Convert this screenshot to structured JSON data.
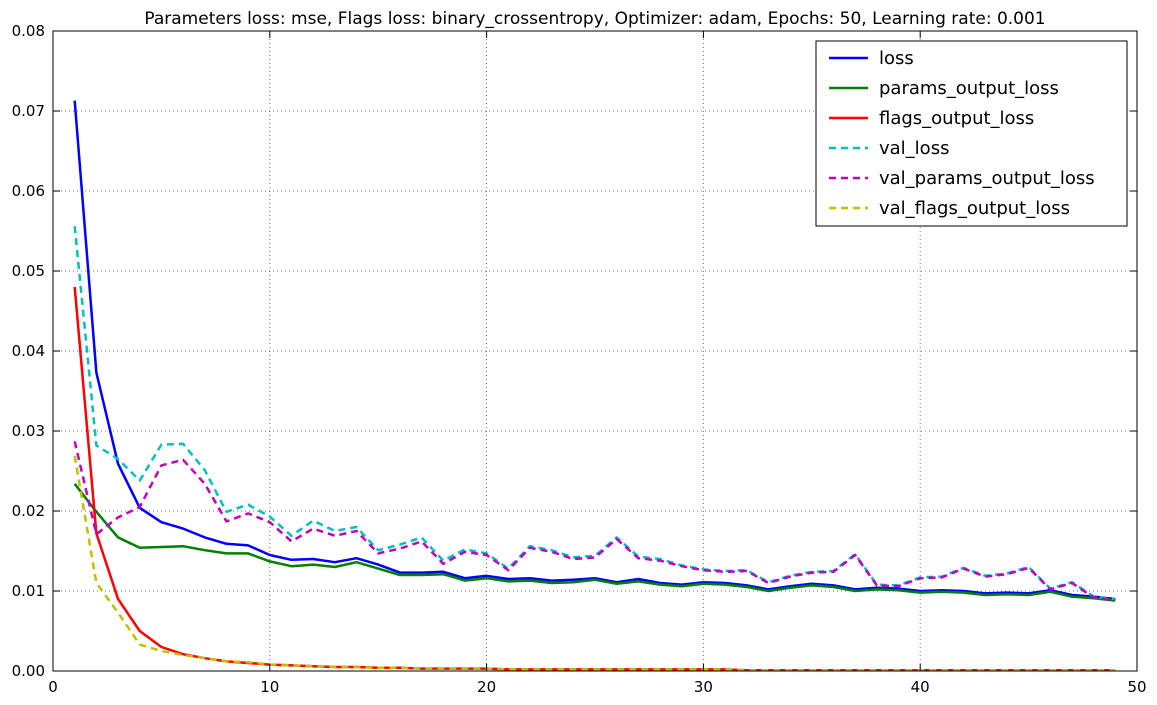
{
  "chart_data": {
    "type": "line",
    "title": "Parameters loss: mse, Flags loss: binary_crossentropy, Optimizer: adam, Epochs: 50, Learning rate: 0.001",
    "xlabel": "",
    "ylabel": "",
    "xlim": [
      0,
      50
    ],
    "ylim": [
      0,
      0.08
    ],
    "xticks": [
      0,
      10,
      20,
      30,
      40,
      50
    ],
    "yticks": [
      0.0,
      0.01,
      0.02,
      0.03,
      0.04,
      0.05,
      0.06,
      0.07,
      0.08
    ],
    "xtick_labels": [
      "0",
      "10",
      "20",
      "30",
      "40",
      "50"
    ],
    "ytick_labels": [
      "0.00",
      "0.01",
      "0.02",
      "0.03",
      "0.04",
      "0.05",
      "0.06",
      "0.07",
      "0.08"
    ],
    "grid": true,
    "legend_position": "top-right",
    "x": [
      1,
      2,
      3,
      4,
      5,
      6,
      7,
      8,
      9,
      10,
      11,
      12,
      13,
      14,
      15,
      16,
      17,
      18,
      19,
      20,
      21,
      22,
      23,
      24,
      25,
      26,
      27,
      28,
      29,
      30,
      31,
      32,
      33,
      34,
      35,
      36,
      37,
      38,
      39,
      40,
      41,
      42,
      43,
      44,
      45,
      46,
      47,
      48,
      49
    ],
    "series": [
      {
        "name": "loss",
        "color": "#0000ff",
        "style": "solid",
        "values": [
          0.0713,
          0.0373,
          0.0259,
          0.0204,
          0.0186,
          0.0178,
          0.0167,
          0.0159,
          0.0157,
          0.0145,
          0.0139,
          0.014,
          0.0136,
          0.0141,
          0.0133,
          0.0123,
          0.0123,
          0.0124,
          0.0116,
          0.0119,
          0.0115,
          0.0116,
          0.0113,
          0.0114,
          0.0116,
          0.0111,
          0.0115,
          0.011,
          0.0108,
          0.0111,
          0.011,
          0.0107,
          0.0102,
          0.0106,
          0.0109,
          0.0107,
          0.0102,
          0.0104,
          0.0103,
          0.01,
          0.0101,
          0.01,
          0.0097,
          0.0098,
          0.0097,
          0.0101,
          0.0095,
          0.0093,
          0.009
        ]
      },
      {
        "name": "params_output_loss",
        "color": "#008000",
        "style": "solid",
        "values": [
          0.0234,
          0.0199,
          0.0167,
          0.0154,
          0.0155,
          0.0156,
          0.0151,
          0.0147,
          0.0147,
          0.0137,
          0.0131,
          0.0133,
          0.013,
          0.0136,
          0.0128,
          0.012,
          0.012,
          0.0121,
          0.0113,
          0.0116,
          0.0112,
          0.0113,
          0.011,
          0.0111,
          0.0114,
          0.0109,
          0.0112,
          0.0108,
          0.0106,
          0.0109,
          0.0108,
          0.0105,
          0.01,
          0.0104,
          0.0107,
          0.0105,
          0.01,
          0.0102,
          0.0101,
          0.0098,
          0.0099,
          0.0098,
          0.0095,
          0.0096,
          0.0095,
          0.0099,
          0.0093,
          0.0091,
          0.0088
        ]
      },
      {
        "name": "flags_output_loss",
        "color": "#ff0000",
        "style": "solid",
        "values": [
          0.048,
          0.0172,
          0.009,
          0.005,
          0.003,
          0.0021,
          0.0016,
          0.0012,
          0.001,
          0.0008,
          0.0007,
          0.0006,
          0.0005,
          0.0005,
          0.0004,
          0.0004,
          0.0003,
          0.0003,
          0.0003,
          0.0003,
          0.0002,
          0.0002,
          0.0002,
          0.0002,
          0.0002,
          0.0002,
          0.0002,
          0.0002,
          0.0002,
          0.0002,
          0.0002,
          0.0001,
          0.0001,
          0.0001,
          0.0001,
          0.0001,
          0.0001,
          0.0001,
          0.0001,
          0.0001,
          0.0001,
          0.0001,
          0.0001,
          0.0001,
          0.0001,
          0.0001,
          0.0001,
          0.0001,
          0.0001
        ]
      },
      {
        "name": "val_loss",
        "color": "#00bfbf",
        "style": "dashed",
        "values": [
          0.0556,
          0.0282,
          0.0265,
          0.0238,
          0.0283,
          0.0284,
          0.0251,
          0.0199,
          0.0208,
          0.0193,
          0.0169,
          0.0188,
          0.0175,
          0.018,
          0.0151,
          0.0158,
          0.0167,
          0.0138,
          0.0152,
          0.0147,
          0.0128,
          0.0156,
          0.0151,
          0.0142,
          0.0144,
          0.0167,
          0.0143,
          0.014,
          0.0132,
          0.0127,
          0.0125,
          0.0126,
          0.0111,
          0.0119,
          0.0124,
          0.0125,
          0.0146,
          0.0108,
          0.0107,
          0.0117,
          0.0118,
          0.0129,
          0.0119,
          0.0122,
          0.013,
          0.0103,
          0.0111,
          0.0093,
          0.009
        ]
      },
      {
        "name": "val_params_output_loss",
        "color": "#bf00bf",
        "style": "dashed",
        "values": [
          0.0287,
          0.0171,
          0.0192,
          0.0205,
          0.0257,
          0.0264,
          0.0234,
          0.0187,
          0.0197,
          0.0186,
          0.0162,
          0.0178,
          0.0169,
          0.0175,
          0.0147,
          0.0153,
          0.0162,
          0.0134,
          0.0149,
          0.0145,
          0.0126,
          0.0154,
          0.0149,
          0.014,
          0.0142,
          0.0165,
          0.0141,
          0.0138,
          0.0131,
          0.0126,
          0.0124,
          0.0125,
          0.011,
          0.0118,
          0.0123,
          0.0124,
          0.0145,
          0.0107,
          0.0106,
          0.0116,
          0.0117,
          0.0128,
          0.0118,
          0.0121,
          0.0129,
          0.0102,
          0.011,
          0.0092,
          0.0089
        ]
      },
      {
        "name": "val_flags_output_loss",
        "color": "#bfbf00",
        "style": "dashed",
        "values": [
          0.0269,
          0.011,
          0.0073,
          0.0033,
          0.0025,
          0.002,
          0.0016,
          0.0012,
          0.0011,
          0.0008,
          0.0007,
          0.0006,
          0.0005,
          0.0005,
          0.0004,
          0.0004,
          0.0003,
          0.0003,
          0.0003,
          0.0003,
          0.0002,
          0.0002,
          0.0002,
          0.0002,
          0.0002,
          0.0002,
          0.0002,
          0.0002,
          0.0002,
          0.0002,
          0.0002,
          0.0001,
          0.0001,
          0.0001,
          0.0001,
          0.0001,
          0.0001,
          0.0001,
          0.0001,
          0.0001,
          0.0001,
          0.0001,
          0.0001,
          0.0001,
          0.0001,
          0.0001,
          0.0001,
          0.0001,
          0.0001
        ]
      }
    ]
  }
}
